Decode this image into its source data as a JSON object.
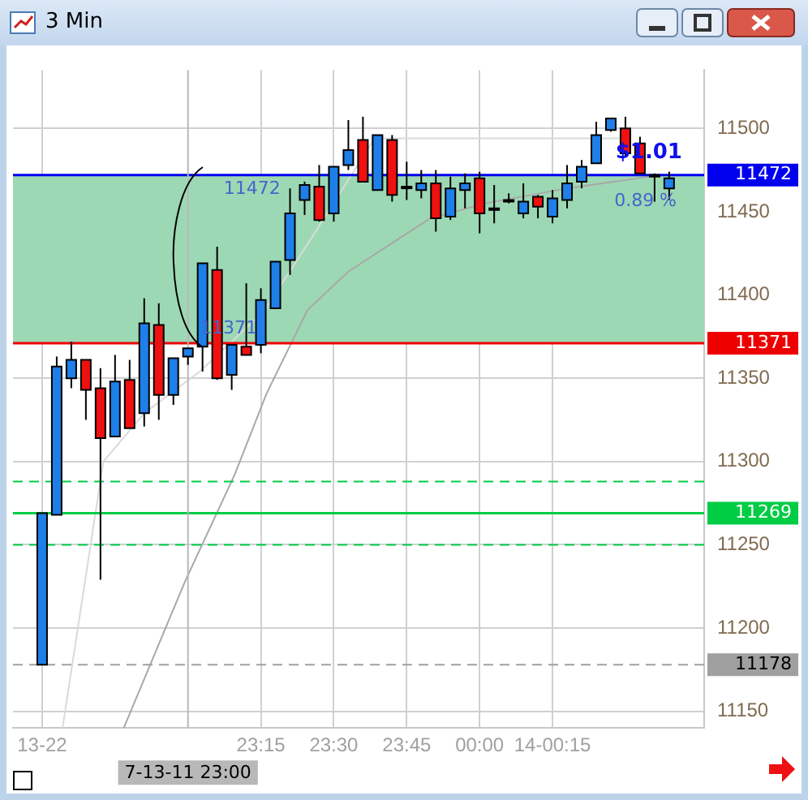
{
  "chart_data": {
    "type": "candlestick",
    "title": "3 Min",
    "x": [
      22.5,
      22.55,
      22.6,
      22.65,
      22.7,
      22.75,
      22.8,
      22.85,
      22.9,
      22.95,
      23,
      23.05,
      23.1,
      23.15,
      23.2,
      23.25,
      23.3,
      23.35,
      23.4,
      23.45,
      23.5,
      23.55,
      23.6,
      23.65,
      23.7,
      23.75,
      23.8,
      23.85,
      23.9,
      23.95,
      24,
      24.05,
      24.1,
      24.15,
      24.2,
      24.25,
      24.3,
      24.35,
      24.4,
      24.45,
      24.5,
      24.55,
      24.6,
      24.65
    ],
    "ohlc": [
      [
        11178,
        11269,
        11178,
        11269
      ],
      [
        11268,
        11363,
        11268,
        11357
      ],
      [
        11350,
        11372,
        11344,
        11361
      ],
      [
        11361,
        11361,
        11325,
        11343
      ],
      [
        11344,
        11356,
        11229,
        11314
      ],
      [
        11315,
        11364,
        11315,
        11348
      ],
      [
        11349,
        11361,
        11320,
        11320
      ],
      [
        11329,
        11398,
        11321,
        11383
      ],
      [
        11382,
        11395,
        11325,
        11340
      ],
      [
        11340,
        11362,
        11334,
        11362
      ],
      [
        11363,
        11368,
        11358,
        11368
      ],
      [
        11369,
        11419,
        11354,
        11419
      ],
      [
        11415,
        11429,
        11349,
        11350
      ],
      [
        11352,
        11370,
        11343,
        11370
      ],
      [
        11369,
        11407,
        11364,
        11364
      ],
      [
        11370,
        11404,
        11365,
        11397
      ],
      [
        11392,
        11420,
        11392,
        11420
      ],
      [
        11421,
        11464,
        11412,
        11449
      ],
      [
        11457,
        11468,
        11448,
        11466
      ],
      [
        11465,
        11478,
        11444,
        11445
      ],
      [
        11449,
        11477,
        11444,
        11477
      ],
      [
        11478,
        11505,
        11475,
        11487
      ],
      [
        11493,
        11507,
        11468,
        11468
      ],
      [
        11463,
        11496,
        11463,
        11496
      ],
      [
        11493,
        11496,
        11456,
        11460
      ],
      [
        11465,
        11480,
        11457,
        11465
      ],
      [
        11463,
        11475,
        11458,
        11467
      ],
      [
        11467,
        11475,
        11438,
        11446
      ],
      [
        11447,
        11471,
        11445,
        11464
      ],
      [
        11463,
        11473,
        11452,
        11467
      ],
      [
        11470,
        11474,
        11437,
        11449
      ],
      [
        11452,
        11466,
        11443,
        11452
      ],
      [
        11457,
        11461,
        11455,
        11457
      ],
      [
        11449,
        11467,
        11446,
        11456
      ],
      [
        11459,
        11460,
        11446,
        11453
      ],
      [
        11447,
        11463,
        11443,
        11458
      ],
      [
        11457,
        11478,
        11452,
        11467
      ],
      [
        11468,
        11481,
        11464,
        11477
      ],
      [
        11479,
        11504,
        11479,
        11496
      ],
      [
        11499,
        11506,
        11498,
        11506
      ],
      [
        11500,
        11507,
        11483,
        11485
      ],
      [
        11491,
        11495,
        11473,
        11473
      ],
      [
        11472,
        11473,
        11456,
        11472
      ],
      [
        11464,
        11474,
        11457,
        11470
      ]
    ],
    "colors": [
      "#1e7fe8",
      "#1e7fe8",
      "#1e7fe8",
      "#f01010",
      "#f01010",
      "#1e7fe8",
      "#f01010",
      "#1e7fe8",
      "#f01010",
      "#1e7fe8",
      "#1e7fe8",
      "#1e7fe8",
      "#f01010",
      "#1e7fe8",
      "#f01010",
      "#1e7fe8",
      "#1e7fe8",
      "#1e7fe8",
      "#1e7fe8",
      "#f01010",
      "#1e7fe8",
      "#1e7fe8",
      "#f01010",
      "#1e7fe8",
      "#f01010",
      "#1e7fe8",
      "#1e7fe8",
      "#f01010",
      "#1e7fe8",
      "#1e7fe8",
      "#f01010",
      "#1e7fe8",
      "#1e7fe8",
      "#1e7fe8",
      "#f01010",
      "#1e7fe8",
      "#1e7fe8",
      "#1e7fe8",
      "#1e7fe8",
      "#1e7fe8",
      "#f01010",
      "#f01010",
      "#1e7fe8",
      "#1e7fe8"
    ],
    "series": [
      {
        "type": "line",
        "color": "#a8a8a8",
        "x": [
          22.78,
          22.99,
          23.16,
          23.27,
          23.41,
          23.55,
          23.69,
          23.83,
          24.02,
          24.3,
          24.58
        ],
        "values": [
          11140,
          11228,
          11292,
          11341,
          11391,
          11414,
          11430,
          11446,
          11455,
          11464,
          11471
        ]
      },
      {
        "type": "line",
        "color": "#dadada",
        "x": [
          22.57,
          22.71,
          22.85,
          23.04,
          23.26,
          23.43,
          23.64,
          23.98,
          24.48
        ],
        "values": [
          11140,
          11300,
          11329,
          11354,
          11390,
          11436,
          11494,
          11494,
          11494
        ]
      }
    ],
    "xlim": [
      22.4,
      24.77
    ],
    "xticks": [
      {
        "value": 22.5,
        "label": "13-22"
      },
      {
        "value": 23.25,
        "label": "23:15"
      },
      {
        "value": 23.5,
        "label": "23:30"
      },
      {
        "value": 23.75,
        "label": "23:45"
      },
      {
        "value": 24,
        "label": "00:00"
      },
      {
        "value": 24.25,
        "label": "14-00:15"
      }
    ],
    "ylim": [
      11140,
      11535
    ],
    "yticks": [
      11150,
      11200,
      11250,
      11300,
      11350,
      11400,
      11450,
      11500
    ],
    "grid": true,
    "bands": [
      {
        "axis": "y",
        "from": 11371,
        "to": 11472,
        "color": "#9dd8b4"
      }
    ],
    "ref_lines": [
      {
        "axis": "y",
        "value": 11472,
        "label": "11472",
        "color": "#0000ee"
      },
      {
        "axis": "y",
        "value": 11371,
        "label": "11371",
        "color": "#ee0000"
      },
      {
        "axis": "y",
        "value": 11288,
        "label": null,
        "color": "#00cc44",
        "line_style": "dashed"
      },
      {
        "axis": "y",
        "value": 11269,
        "label": "11269",
        "color": "#00cc44"
      },
      {
        "axis": "y",
        "value": 11250,
        "label": null,
        "color": "#00cc44",
        "line_style": "dashed"
      },
      {
        "axis": "y",
        "value": 11178,
        "label": "11178",
        "color": "#a0a0a0",
        "line_style": "dashed"
      },
      {
        "axis": "x",
        "value": 23,
        "label": "7-13-11 23:00",
        "color": "#b8b8b8"
      }
    ],
    "annotations": [
      {
        "text": "11472",
        "x": 23.22,
        "y": 11472
      },
      {
        "text": "11371",
        "x": 23.14,
        "y": 11371
      },
      "$1.01",
      "0.89 %"
    ]
  }
}
